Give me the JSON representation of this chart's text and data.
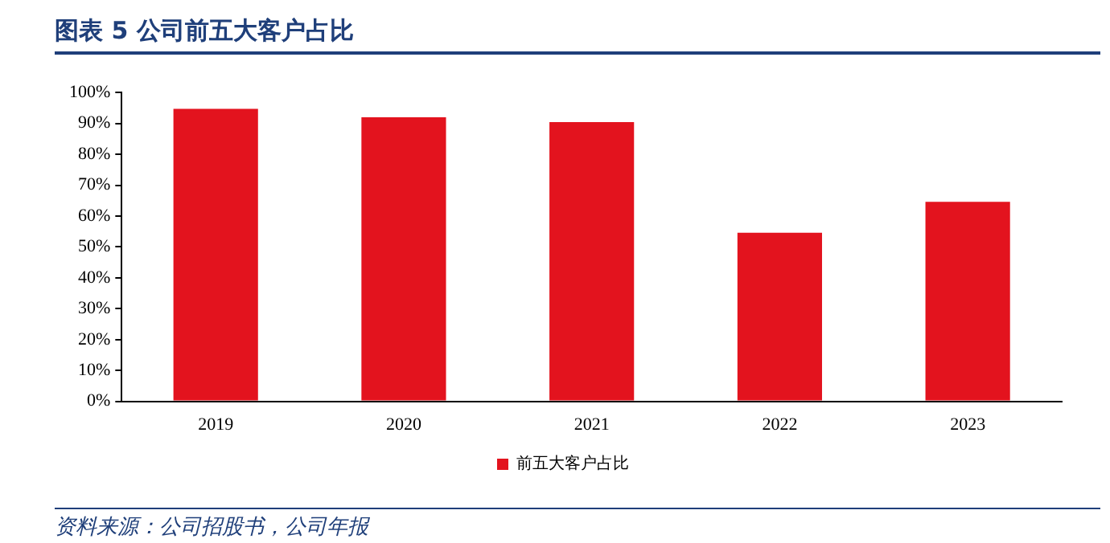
{
  "chart_data": {
    "type": "bar",
    "title": "图表 5   公司前五大客户占比",
    "categories": [
      "2019",
      "2020",
      "2021",
      "2022",
      "2023"
    ],
    "series": [
      {
        "name": "前五大客户占比",
        "color": "#e3131e",
        "values": [
          94.7,
          92.0,
          90.4,
          54.6,
          64.6
        ]
      }
    ],
    "ylim": [
      0,
      100
    ],
    "yticks": [
      {
        "value": 0,
        "label": "0%"
      },
      {
        "value": 10,
        "label": "10%"
      },
      {
        "value": 20,
        "label": "20%"
      },
      {
        "value": 30,
        "label": "30%"
      },
      {
        "value": 40,
        "label": "40%"
      },
      {
        "value": 50,
        "label": "50%"
      },
      {
        "value": 60,
        "label": "60%"
      },
      {
        "value": 70,
        "label": "70%"
      },
      {
        "value": 80,
        "label": "80%"
      },
      {
        "value": 90,
        "label": "90%"
      },
      {
        "value": 100,
        "label": "100%"
      }
    ],
    "grid": false,
    "legend": "bottom",
    "annotations": [
      "资料来源：公司招股书，公司年报"
    ]
  }
}
